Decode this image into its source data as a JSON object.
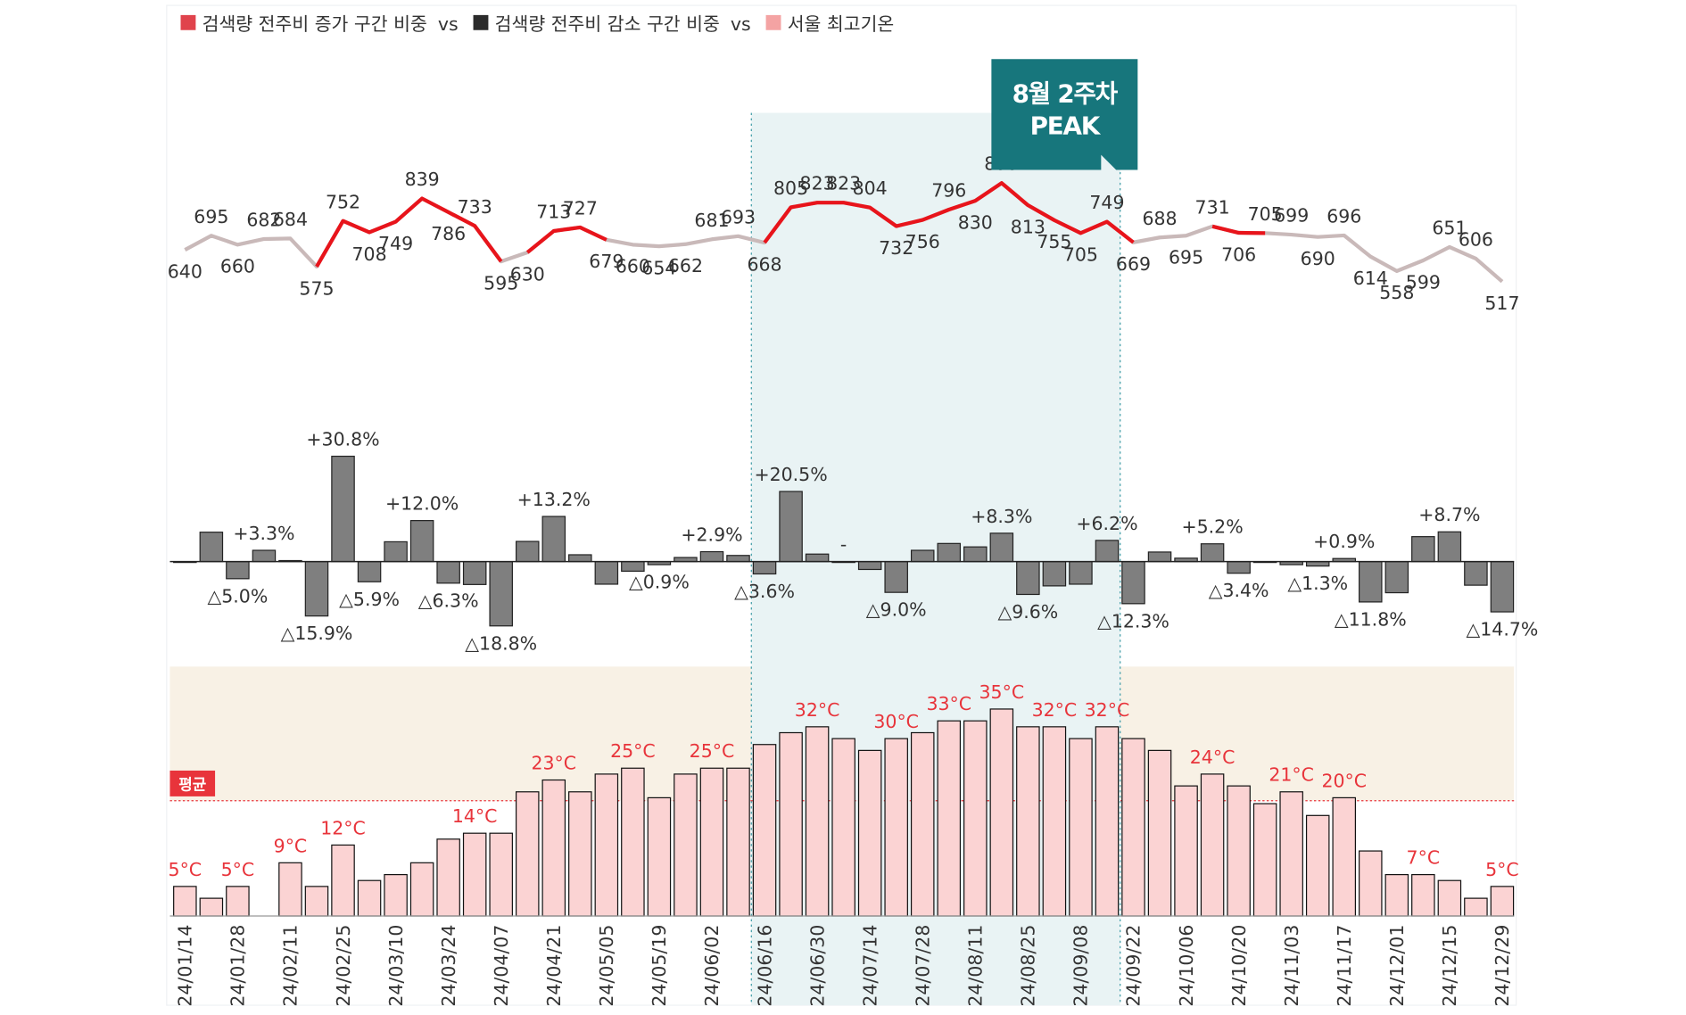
{
  "legend": {
    "items": [
      {
        "name": "검색량 전주비 증가 구간 비중",
        "color": "#e0434c"
      },
      {
        "name": "검색량 전주비 감소 구간 비중",
        "color": "#2b2b2b"
      },
      {
        "name": "서울 최고기온",
        "color": "#f4a3a3"
      }
    ],
    "separator": "vs"
  },
  "highlight_span": [
    22,
    36
  ],
  "chart_data": [
    {
      "type": "line",
      "color": "#c9b9b9",
      "highlight_color": "#e8141b",
      "highlight_ranges": [
        [
          5,
          12
        ],
        [
          13,
          16
        ],
        [
          22,
          36
        ],
        [
          39,
          41
        ]
      ],
      "ylim": [
        400,
        950
      ],
      "values": [
        640,
        695,
        660,
        682,
        684,
        575,
        752,
        708,
        749,
        839,
        786,
        733,
        595,
        630,
        713,
        727,
        679,
        660,
        654,
        662,
        681,
        693,
        668,
        805,
        823,
        823,
        804,
        732,
        756,
        796,
        830,
        899,
        813,
        755,
        705,
        749,
        669,
        688,
        695,
        731,
        706,
        705,
        699,
        690,
        696,
        614,
        558,
        599,
        651,
        606,
        517
      ],
      "callout": [
        "8월 2주차",
        "PEAK"
      ],
      "callout_index": 31
    },
    {
      "type": "bar",
      "color": "#7f7f7f",
      "ylim": [
        -20,
        35
      ],
      "values": [
        0,
        8.6,
        -5.0,
        3.3,
        0.3,
        -15.9,
        30.8,
        -5.9,
        5.8,
        12.0,
        -6.3,
        -6.7,
        -18.8,
        5.9,
        13.2,
        2.0,
        -6.6,
        -2.8,
        -0.9,
        1.2,
        2.9,
        1.8,
        -3.6,
        20.5,
        2.2,
        0,
        -2.3,
        -9.0,
        3.3,
        5.3,
        4.3,
        8.3,
        -9.6,
        -7.1,
        -6.6,
        6.2,
        -12.3,
        2.8,
        1.0,
        5.2,
        -3.4,
        -0.1,
        -0.9,
        -1.3,
        0.9,
        -11.8,
        -9.1,
        7.3,
        8.7,
        -6.9,
        -14.7
      ],
      "value_labels": [
        null,
        null,
        "△5.0%",
        "+3.3%",
        null,
        "△15.9%",
        "+30.8%",
        "△5.9%",
        null,
        "+12.0%",
        "△6.3%",
        null,
        "△18.8%",
        null,
        "+13.2%",
        null,
        null,
        null,
        "△0.9%",
        null,
        "+2.9%",
        null,
        "△3.6%",
        "+20.5%",
        null,
        "-",
        null,
        "△9.0%",
        null,
        null,
        null,
        "+8.3%",
        "△9.6%",
        null,
        null,
        "+6.2%",
        "△12.3%",
        null,
        null,
        "+5.2%",
        "△3.4%",
        null,
        null,
        "△1.3%",
        "+0.9%",
        "△11.8%",
        null,
        null,
        "+8.7%",
        null,
        "△14.7%"
      ]
    },
    {
      "type": "bar",
      "color": "#fbd3d3",
      "label_color": "#e8343b",
      "ylim": [
        0,
        40
      ],
      "average": 19.5,
      "average_label": "평균",
      "categories": [
        "24/01/14",
        null,
        "24/01/28",
        null,
        "24/02/11",
        null,
        "24/02/25",
        null,
        "24/03/10",
        null,
        "24/03/24",
        null,
        "24/04/07",
        null,
        "24/04/21",
        null,
        "24/05/05",
        null,
        "24/05/19",
        null,
        "24/06/02",
        null,
        "24/06/16",
        null,
        "24/06/30",
        null,
        "24/07/14",
        null,
        "24/07/28",
        null,
        "24/08/11",
        null,
        "24/08/25",
        null,
        "24/09/08",
        null,
        "24/09/22",
        null,
        "24/10/06",
        null,
        "24/10/20",
        null,
        "24/11/03",
        null,
        "24/11/17",
        null,
        "24/12/01",
        null,
        "24/12/15",
        null,
        "24/12/29"
      ],
      "values": [
        5,
        3,
        5,
        null,
        9,
        5,
        12,
        6,
        7,
        9,
        13,
        14,
        14,
        21,
        23,
        21,
        24,
        25,
        20,
        24,
        25,
        25,
        29,
        31,
        32,
        30,
        28,
        30,
        31,
        33,
        33,
        35,
        32,
        32,
        30,
        32,
        30,
        28,
        22,
        24,
        22,
        19,
        21,
        17,
        20,
        11,
        7,
        7,
        6,
        3,
        5
      ],
      "value_labels": [
        "5°C",
        null,
        "5°C",
        null,
        "9°C",
        null,
        "12°C",
        null,
        null,
        null,
        null,
        "14°C",
        null,
        null,
        "23°C",
        null,
        null,
        "25°C",
        null,
        null,
        "25°C",
        null,
        null,
        null,
        "32°C",
        null,
        null,
        "30°C",
        null,
        "33°C",
        null,
        "35°C",
        null,
        "32°C",
        null,
        "32°C",
        null,
        null,
        null,
        "24°C",
        null,
        null,
        "21°C",
        null,
        "20°C",
        null,
        null,
        "7°C",
        null,
        null,
        "5°C"
      ]
    }
  ]
}
